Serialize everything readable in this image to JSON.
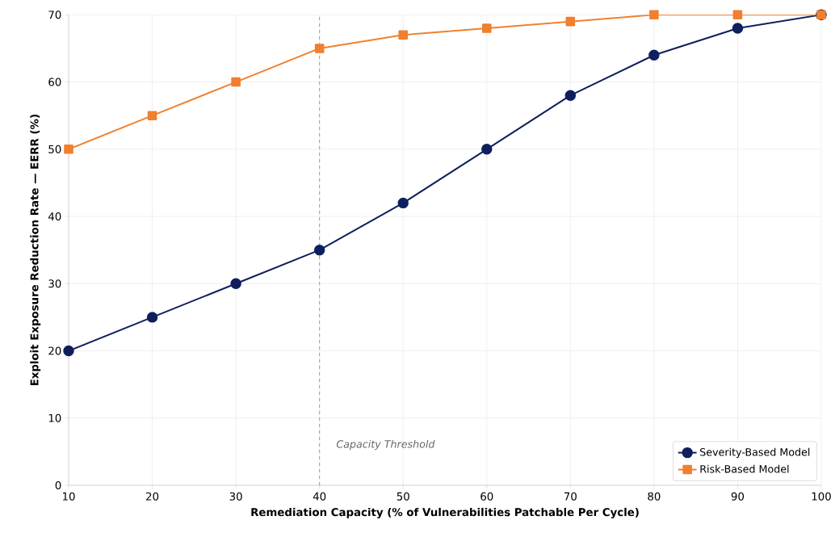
{
  "chart_data": {
    "type": "line",
    "xlabel": "Remediation Capacity (% of Vulnerabilities Patchable Per Cycle)",
    "ylabel": "Exploit Exposure Reduction Rate — EERR (%)",
    "x": [
      10,
      20,
      30,
      40,
      50,
      60,
      70,
      80,
      90,
      100
    ],
    "series": [
      {
        "name": "Severity-Based Model",
        "color": "#0f1f5e",
        "marker": "circle",
        "values": [
          20,
          25,
          30,
          35,
          42,
          50,
          58,
          64,
          68,
          70
        ]
      },
      {
        "name": "Risk-Based Model",
        "color": "#f0802f",
        "marker": "square",
        "values": [
          50,
          55,
          60,
          65,
          67,
          68,
          69,
          70,
          70,
          70
        ]
      }
    ],
    "xlim": [
      10,
      100
    ],
    "ylim": [
      0,
      70
    ],
    "xticks": [
      10,
      20,
      30,
      40,
      50,
      60,
      70,
      80,
      90,
      100
    ],
    "yticks": [
      0,
      10,
      20,
      30,
      40,
      50,
      60,
      70
    ],
    "ref_lines": [
      {
        "axis": "x",
        "value": 40,
        "label": "Capacity Threshold",
        "color": "#a0a0a0",
        "line_style": "dashed"
      }
    ],
    "grid": true,
    "legend": "bottom right"
  }
}
